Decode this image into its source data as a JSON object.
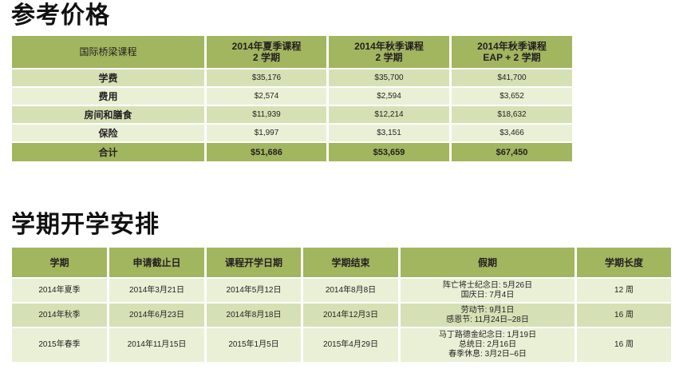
{
  "section1": {
    "title": "参考价格",
    "corner_label": "国际桥梁课程",
    "columns": [
      {
        "line1": "2014年夏季课程",
        "line2": "2 学期"
      },
      {
        "line1": "2014年秋季课程",
        "line2": "2 学期"
      },
      {
        "line1": "2014年秋季课程",
        "line2": "EAP + 2 学期"
      }
    ],
    "rows": [
      {
        "label": "学费",
        "values": [
          "$35,176",
          "$35,700",
          "$41,700"
        ]
      },
      {
        "label": "费用",
        "values": [
          "$2,574",
          "$2,594",
          "$3,652"
        ]
      },
      {
        "label": "房间和膳食",
        "values": [
          "$11,939",
          "$12,214",
          "$18,632"
        ]
      },
      {
        "label": "保险",
        "values": [
          "$1,997",
          "$3,151",
          "$3,466"
        ]
      }
    ],
    "total": {
      "label": "合计",
      "values": [
        "$51,686",
        "$53,659",
        "$67,450"
      ]
    }
  },
  "section2": {
    "title": "学期开学安排",
    "headers": [
      "学期",
      "申请截止日",
      "课程开学日期",
      "学期结束",
      "假期",
      "学期长度"
    ],
    "rows": [
      {
        "term": "2014年夏季",
        "deadline": "2014年3月21日",
        "start": "2014年5月12日",
        "end": "2014年8月8日",
        "holidays": [
          "阵亡将士纪念日: 5月26日",
          "国庆日: 7月4日"
        ],
        "length": "12 周"
      },
      {
        "term": "2014年秋季",
        "deadline": "2014年6月23日",
        "start": "2014年8月18日",
        "end": "2014年12月3日",
        "holidays": [
          "劳动节: 9月1日",
          "感恩节: 11月24日–28日"
        ],
        "length": "16 周"
      },
      {
        "term": "2015年春季",
        "deadline": "2014年11月15日",
        "start": "2015年1月5日",
        "end": "2015年4月29日",
        "holidays": [
          "马丁路德金纪念日: 1月19日",
          "总统日: 2月16日",
          "春季休息: 3月2日–6日"
        ],
        "length": "16 周"
      }
    ]
  }
}
